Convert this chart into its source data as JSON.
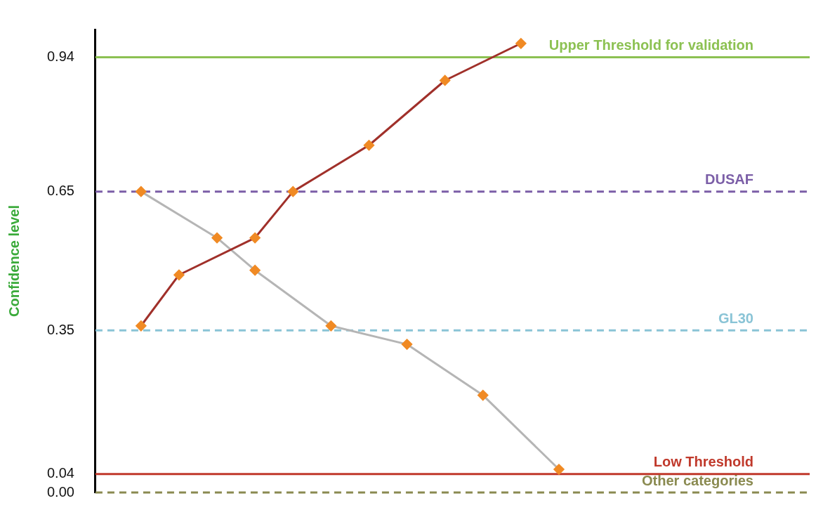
{
  "chart_data": {
    "type": "line",
    "ylabel": "Confidence level",
    "categories": [
      null,
      null,
      null,
      null,
      null,
      null,
      null,
      null,
      null,
      null,
      null,
      null
    ],
    "series": [
      {
        "color": "#a0302a",
        "colors": [
          "#f08a24",
          "#f08a24",
          null,
          "#f08a24",
          "#f08a24",
          null,
          "#f08a24",
          null,
          "#f08a24",
          null,
          "#f08a24",
          null
        ],
        "values": [
          0.36,
          0.47,
          null,
          0.55,
          0.65,
          null,
          0.75,
          null,
          0.89,
          null,
          0.97,
          null
        ]
      },
      {
        "color": "#b5b5b5",
        "colors": [
          "#f08a24",
          null,
          "#f08a24",
          "#f08a24",
          null,
          "#f08a24",
          null,
          "#f08a24",
          null,
          "#f08a24",
          null,
          "#f08a24"
        ],
        "values": [
          0.65,
          null,
          0.55,
          0.48,
          null,
          0.36,
          null,
          0.32,
          null,
          0.21,
          null,
          0.05
        ]
      }
    ],
    "ylim": [
      0,
      1
    ],
    "yticks": [
      {
        "value": 0,
        "label": "0.00"
      },
      0.04,
      0.35,
      0.65,
      0.94
    ],
    "tick_labels": "y",
    "grid": false,
    "legend": false,
    "marker": "diamond",
    "line_style": "solid",
    "ref_lines": [
      {
        "axis": "y",
        "value": 0.94,
        "label": "Upper Threshold for validation",
        "color": "#8cc152",
        "line_style": "solid"
      },
      {
        "axis": "y",
        "value": 0.65,
        "label": "DUSAF",
        "color": "#7b5ea7",
        "line_style": "dashed"
      },
      {
        "axis": "y",
        "value": 0.35,
        "label": "GL30",
        "color": "#8ac4d6",
        "line_style": "dashed"
      },
      {
        "axis": "y",
        "value": 0.04,
        "label": "Low Threshold",
        "color": "#c0392b",
        "line_style": "solid"
      },
      {
        "axis": "y",
        "value": 0,
        "label": "Other categories",
        "color": "#8a8a50",
        "line_style": "dashed"
      }
    ]
  }
}
